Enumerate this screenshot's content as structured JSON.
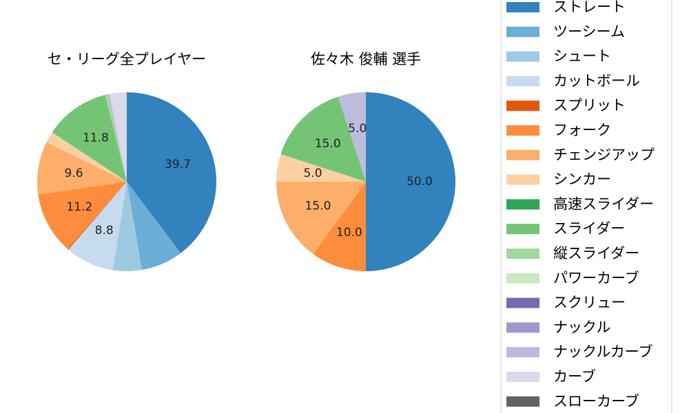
{
  "chart_data": [
    {
      "type": "pie",
      "title": "セ・リーグ全プレイヤー",
      "start_angle_deg": 90,
      "direction": "clockwise",
      "slices": [
        {
          "name": "ストレート",
          "value": 39.7,
          "label": "39.7"
        },
        {
          "name": "ツーシーム",
          "value": 7.6,
          "label": ""
        },
        {
          "name": "シュート",
          "value": 5.2,
          "label": ""
        },
        {
          "name": "カットボール",
          "value": 8.8,
          "label": "8.8"
        },
        {
          "name": "スプリット",
          "value": 0.2,
          "label": ""
        },
        {
          "name": "フォーク",
          "value": 11.2,
          "label": "11.2"
        },
        {
          "name": "チェンジアップ",
          "value": 9.6,
          "label": "9.6"
        },
        {
          "name": "シンカー",
          "value": 2.0,
          "label": ""
        },
        {
          "name": "高速スライダー",
          "value": 0.0,
          "label": ""
        },
        {
          "name": "スライダー",
          "value": 11.8,
          "label": "11.8"
        },
        {
          "name": "縦スライダー",
          "value": 0.4,
          "label": ""
        },
        {
          "name": "パワーカーブ",
          "value": 0.0,
          "label": ""
        },
        {
          "name": "スクリュー",
          "value": 0.0,
          "label": ""
        },
        {
          "name": "ナックル",
          "value": 0.0,
          "label": ""
        },
        {
          "name": "ナックルカーブ",
          "value": 0.4,
          "label": ""
        },
        {
          "name": "カーブ",
          "value": 3.1,
          "label": ""
        },
        {
          "name": "スローカーブ",
          "value": 0.0,
          "label": ""
        }
      ]
    },
    {
      "type": "pie",
      "title": "佐々木 俊輔  選手",
      "start_angle_deg": 90,
      "direction": "clockwise",
      "slices": [
        {
          "name": "ストレート",
          "value": 50.0,
          "label": "50.0"
        },
        {
          "name": "フォーク",
          "value": 10.0,
          "label": "10.0"
        },
        {
          "name": "チェンジアップ",
          "value": 15.0,
          "label": "15.0"
        },
        {
          "name": "シンカー",
          "value": 5.0,
          "label": "5.0"
        },
        {
          "name": "スライダー",
          "value": 15.0,
          "label": "15.0"
        },
        {
          "name": "ナックルカーブ",
          "value": 5.0,
          "label": "5.0"
        }
      ]
    }
  ],
  "colors": {
    "ストレート": "#3182bd",
    "ツーシーム": "#6baed6",
    "シュート": "#9ecae1",
    "カットボール": "#c6dbef",
    "スプリット": "#e6550d",
    "フォーク": "#fd8d3c",
    "チェンジアップ": "#fdae6b",
    "シンカー": "#fdd0a2",
    "高速スライダー": "#31a354",
    "スライダー": "#74c476",
    "縦スライダー": "#a1d99b",
    "パワーカーブ": "#c7e9c0",
    "スクリュー": "#756bb1",
    "ナックル": "#9e9ac8",
    "ナックルカーブ": "#bcbddc",
    "カーブ": "#dadaeb",
    "スローカーブ": "#636363"
  },
  "legend": {
    "placement": "right",
    "items": [
      "ストレート",
      "ツーシーム",
      "シュート",
      "カットボール",
      "スプリット",
      "フォーク",
      "チェンジアップ",
      "シンカー",
      "高速スライダー",
      "スライダー",
      "縦スライダー",
      "パワーカーブ",
      "スクリュー",
      "ナックル",
      "ナックルカーブ",
      "カーブ",
      "スローカーブ"
    ]
  }
}
